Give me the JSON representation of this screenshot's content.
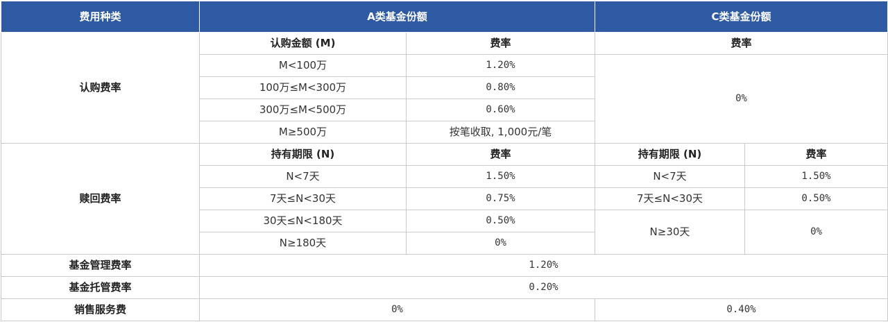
{
  "header": {
    "col_fee_type": "费用种类",
    "col_a": "A类基金份额",
    "col_c": "C类基金份额"
  },
  "subscription": {
    "label": "认购费率",
    "a_amount_header": "认购金额 (M)",
    "a_rate_header": "费率",
    "c_rate_header": "费率",
    "rows": [
      {
        "amount": "M<100万",
        "rate": "1.20%"
      },
      {
        "amount": "100万≤M<300万",
        "rate": "0.80%"
      },
      {
        "amount": "300万≤M<500万",
        "rate": "0.60%"
      },
      {
        "amount": "M≥500万",
        "rate": "按笔收取, 1,000元/笔"
      }
    ],
    "c_rate": "0%"
  },
  "redemption": {
    "label": "赎回费率",
    "a_period_header": "持有期限 (N)",
    "a_rate_header": "费率",
    "c_period_header": "持有期限 (N)",
    "c_rate_header": "费率",
    "a_rows": [
      {
        "period": "N<7天",
        "rate": "1.50%"
      },
      {
        "period": "7天≤N<30天",
        "rate": "0.75%"
      },
      {
        "period": "30天≤N<180天",
        "rate": "0.50%"
      },
      {
        "period": "N≥180天",
        "rate": "0%"
      }
    ],
    "c_rows": [
      {
        "period": "N<7天",
        "rate": "1.50%"
      },
      {
        "period": "7天≤N<30天",
        "rate": "0.50%"
      },
      {
        "period": "N≥30天",
        "rate": "0%"
      }
    ]
  },
  "management_fee": {
    "label": "基金管理费率",
    "value": "1.20%"
  },
  "custody_fee": {
    "label": "基金托管费率",
    "value": "0.20%"
  },
  "sales_service_fee": {
    "label": "销售服务费",
    "a_value": "0%",
    "c_value": "0.40%"
  }
}
